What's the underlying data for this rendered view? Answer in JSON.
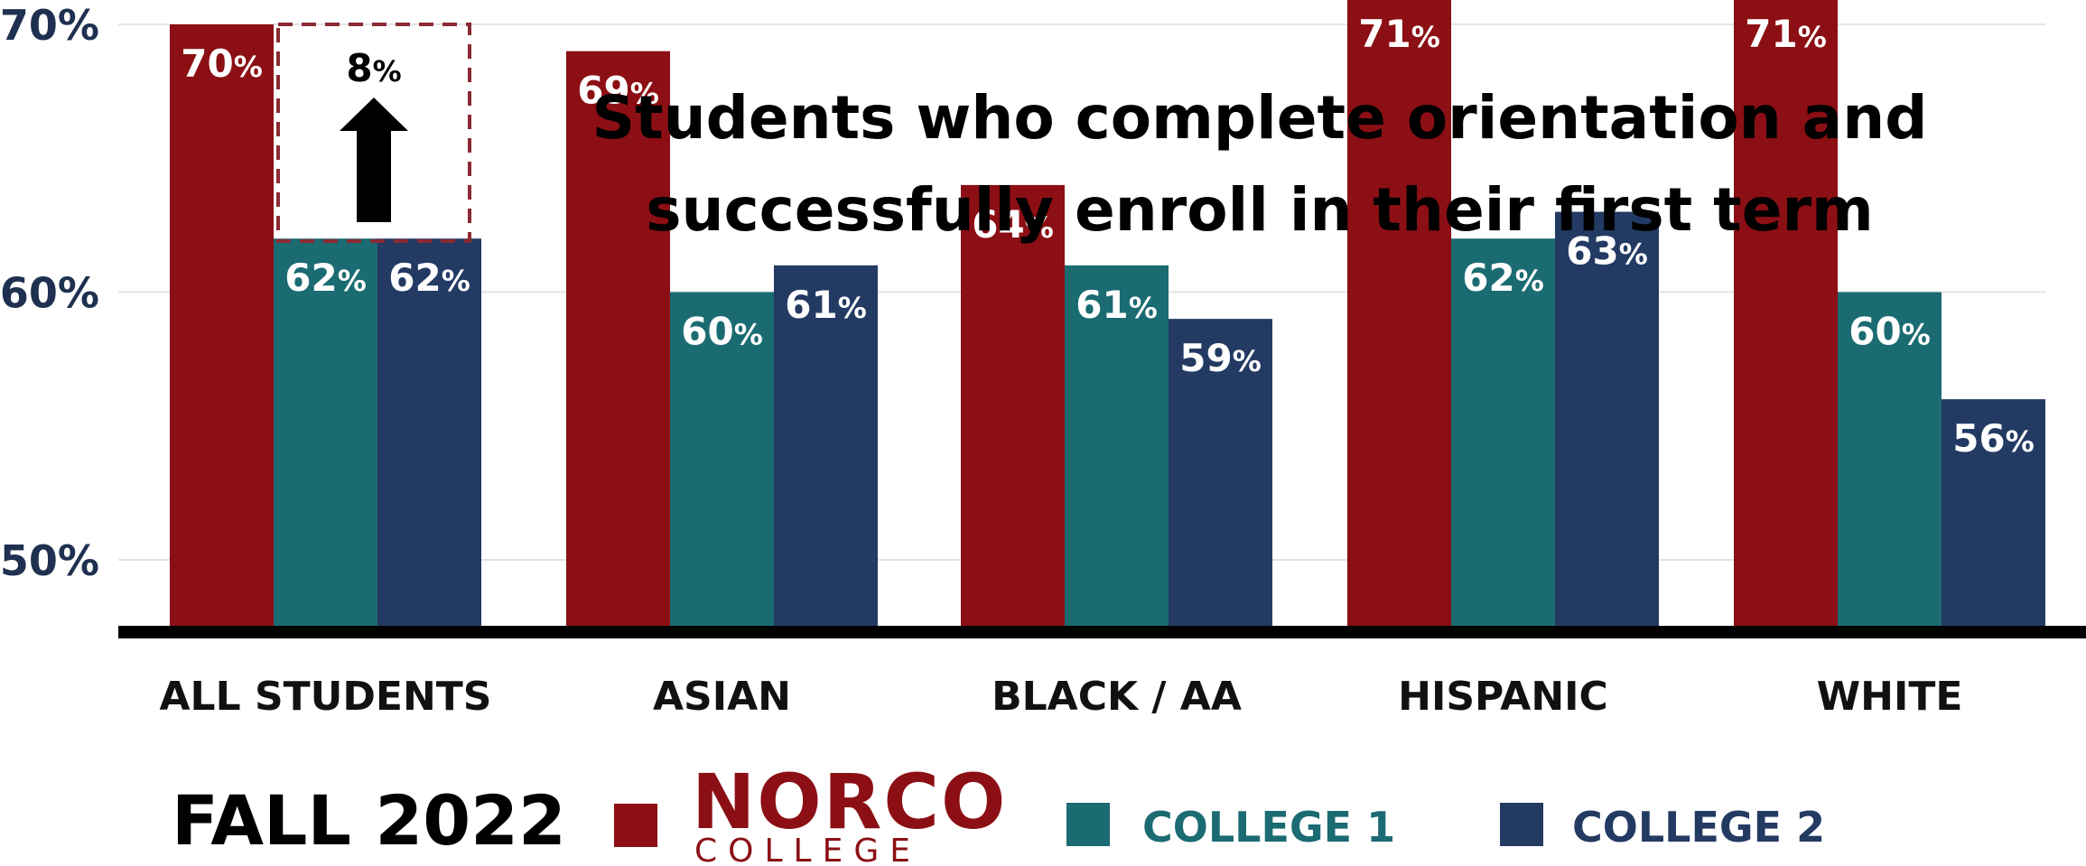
{
  "chart_data": {
    "type": "bar",
    "title": "Students who complete orientation and successfully enroll in their first term",
    "title_lines": [
      "Students who complete orientation and",
      "successfully enroll in their first term"
    ],
    "subtitle": "FALL 2022",
    "categories": [
      "ALL STUDENTS",
      "ASIAN",
      "BLACK / AA",
      "HISPANIC",
      "WHITE"
    ],
    "series": [
      {
        "name": "NORCO COLLEGE",
        "color": "#8b0f14",
        "values": [
          70,
          69,
          64,
          71,
          71
        ]
      },
      {
        "name": "COLLEGE 1",
        "color": "#1b6b72",
        "values": [
          62,
          60,
          61,
          62,
          60
        ]
      },
      {
        "name": "COLLEGE 2",
        "color": "#233a63",
        "values": [
          62,
          61,
          59,
          63,
          56
        ]
      }
    ],
    "value_suffix": "%",
    "ylim": [
      48,
      70
    ],
    "yticks": [
      50,
      60,
      70
    ],
    "ytick_labels": [
      "50%",
      "60%",
      "70%"
    ],
    "grid": true,
    "legend_position": "bottom",
    "annotation": {
      "text": "8",
      "suffix": "%",
      "arrow": "up",
      "category": "ALL STUDENTS"
    }
  },
  "legend": {
    "logo_main": "NORCO",
    "logo_sub": "COLLEGE"
  }
}
